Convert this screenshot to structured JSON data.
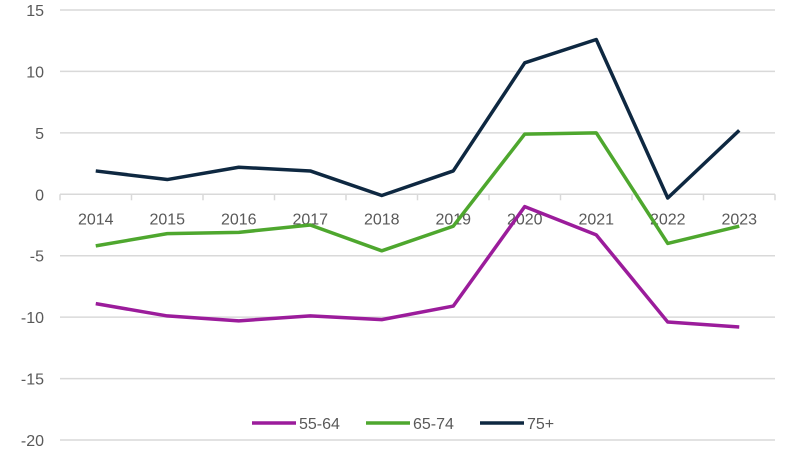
{
  "chart_data": {
    "type": "line",
    "title": "",
    "xlabel": "",
    "ylabel": "",
    "categories": [
      "2014",
      "2015",
      "2016",
      "2017",
      "2018",
      "2019",
      "2020",
      "2021",
      "2022",
      "2023"
    ],
    "ylim": [
      -20,
      15
    ],
    "yticks": [
      15,
      10,
      5,
      0,
      -5,
      -10,
      -15,
      -20
    ],
    "grid": true,
    "legend": "bottom",
    "series": [
      {
        "name": "55-64",
        "color": "#9B1C9B",
        "values": [
          -8.9,
          -9.9,
          -10.3,
          -9.9,
          -10.2,
          -9.1,
          -1.0,
          -3.3,
          -10.4,
          -10.8
        ]
      },
      {
        "name": "65-74",
        "color": "#4EA72E",
        "values": [
          -4.2,
          -3.2,
          -3.1,
          -2.5,
          -4.6,
          -2.6,
          4.9,
          5.0,
          -4.0,
          -2.6
        ]
      },
      {
        "name": "75+",
        "color": "#0E2841",
        "values": [
          1.9,
          1.2,
          2.2,
          1.9,
          -0.1,
          1.9,
          10.7,
          12.6,
          -0.3,
          5.2
        ]
      }
    ]
  }
}
